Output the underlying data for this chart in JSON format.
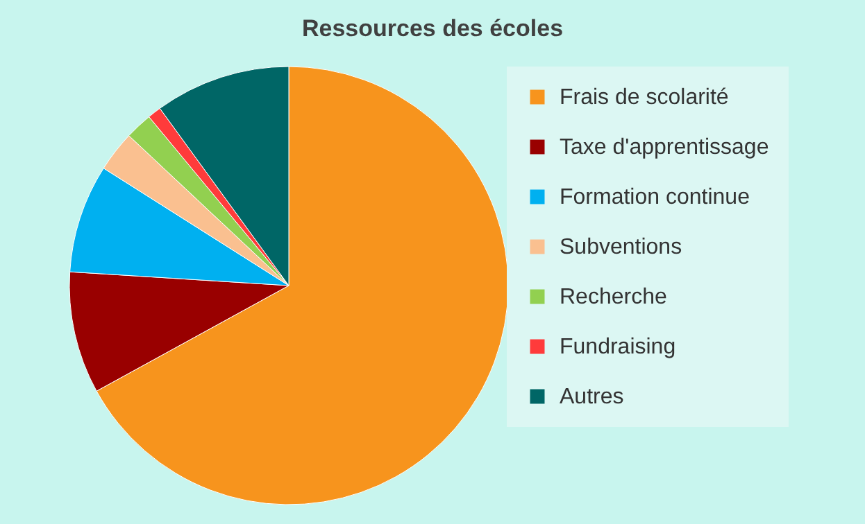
{
  "chart_data": {
    "type": "pie",
    "title": "Ressources des écoles",
    "categories": [
      "Frais de scolarité",
      "Taxe d'apprentissage",
      "Formation continue",
      "Subventions",
      "Recherche",
      "Fundraising",
      "Autres"
    ],
    "values": [
      67,
      9,
      8,
      3,
      2,
      1,
      10
    ],
    "colors": [
      "#f7941d",
      "#990000",
      "#00b0f0",
      "#fac090",
      "#92d050",
      "#ff3b3b",
      "#006666"
    ],
    "legend": "right"
  }
}
